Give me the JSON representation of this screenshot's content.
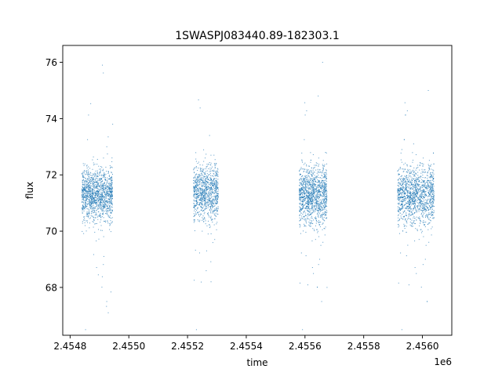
{
  "chart_data": {
    "type": "scatter",
    "title": "1SWASPJ083440.89-182303.1",
    "xlabel": "time",
    "ylabel": "flux",
    "x_offset_label": "1e6",
    "xlim": [
      2454775,
      2456100
    ],
    "ylim": [
      66.3,
      76.6
    ],
    "x_ticks": [
      2454800,
      2455000,
      2455200,
      2455400,
      2455600,
      2455800,
      2456000
    ],
    "x_tick_labels": [
      "2.4548",
      "2.4550",
      "2.4552",
      "2.4554",
      "2.4556",
      "2.4558",
      "2.4560"
    ],
    "y_ticks": [
      68,
      70,
      72,
      74,
      76
    ],
    "y_tick_labels": [
      "68",
      "70",
      "72",
      "74",
      "76"
    ],
    "grid": false,
    "marker_color": "#1f77b4",
    "series": [
      {
        "x": [
          2454840,
          2454845,
          2454850,
          2454855,
          2454860,
          2454870,
          2454880,
          2454890,
          2454900,
          2454905,
          2454910,
          2454915,
          2454920,
          2454925,
          2454930,
          2454935,
          2454940,
          2454945,
          2455220,
          2455225,
          2455230,
          2455240,
          2455250,
          2455260,
          2455265,
          2455270,
          2455275,
          2455280,
          2455285,
          2455290,
          2455300,
          2455580,
          2455590,
          2455600,
          2455610,
          2455620,
          2455630,
          2455640,
          2455645,
          2455650,
          2455655,
          2455660,
          2455665,
          2455670,
          2455675,
          2455920,
          2455930,
          2455940,
          2455950,
          2455960,
          2455970,
          2455980,
          2455990,
          2456000,
          2456010,
          2456015,
          2456020,
          2456025,
          2456030,
          2456035
        ],
        "y": [
          71.5,
          72.4,
          70.3,
          71.2,
          72.0,
          70.8,
          71.9,
          70.6,
          72.2,
          71.0,
          75.9,
          69.1,
          71.6,
          73.0,
          67.1,
          70.2,
          71.4,
          73.8,
          71.8,
          70.4,
          72.3,
          71.1,
          70.0,
          72.6,
          69.3,
          71.5,
          73.4,
          68.2,
          71.0,
          72.7,
          70.7,
          71.3,
          72.5,
          70.2,
          71.7,
          70.6,
          72.1,
          71.0,
          74.8,
          69.0,
          71.4,
          76.0,
          70.1,
          72.8,
          68.0,
          71.6,
          72.9,
          70.1,
          69.5,
          71.2,
          73.1,
          70.5,
          71.8,
          72.4,
          69.0,
          71.1,
          75.0,
          70.3,
          72.2,
          71.5
        ]
      }
    ],
    "clusters": [
      {
        "x_start": 2454840,
        "x_end": 2454945,
        "y_center": 71.3,
        "y_spread": 0.75,
        "n": 1400
      },
      {
        "x_start": 2455220,
        "x_end": 2455305,
        "y_center": 71.4,
        "y_spread": 0.8,
        "n": 1000
      },
      {
        "x_start": 2455580,
        "x_end": 2455675,
        "y_center": 71.3,
        "y_spread": 0.85,
        "n": 1300
      },
      {
        "x_start": 2455915,
        "x_end": 2456040,
        "y_center": 71.3,
        "y_spread": 0.85,
        "n": 1500
      }
    ]
  }
}
